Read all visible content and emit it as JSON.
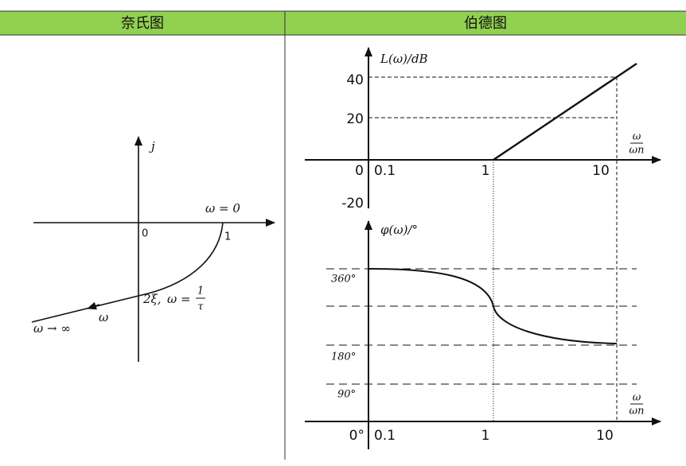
{
  "header": {
    "left": "奈氏图",
    "right": "伯德图"
  },
  "nyquist": {
    "imag_axis": "j",
    "omega_zero": "ω = 0",
    "origin": "0",
    "one": "1",
    "intercept": "2ξ,",
    "omega_eq": "ω =",
    "frac_num": "1",
    "frac_den": "τ",
    "omega": "ω",
    "omega_inf": "ω → ∞"
  },
  "bode": {
    "magnitude": {
      "axis_label": "L(ω)/dB",
      "y_labels": [
        "40",
        "20",
        "0",
        "-20"
      ],
      "x_labels": [
        "0.1",
        "1",
        "10"
      ],
      "x_num": "ω",
      "x_den": "ωn"
    },
    "phase": {
      "axis_label": "φ(ω)/°",
      "y_labels": [
        "360°",
        "180°",
        "90°",
        "0°"
      ],
      "x_labels": [
        "0.1",
        "1",
        "10"
      ],
      "x_num": "ω",
      "x_den": "ωn"
    }
  }
}
